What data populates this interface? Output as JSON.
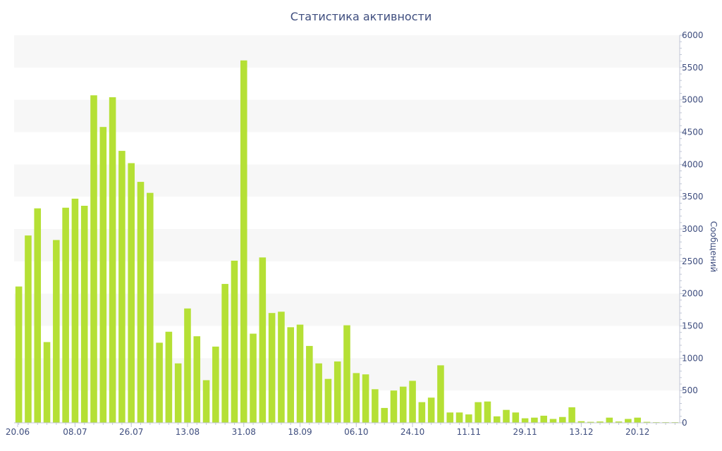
{
  "chart_data": {
    "type": "bar",
    "title": "Статистика активности",
    "ylabel": "Сообщений",
    "xlabel": "",
    "ylim": [
      0,
      6000
    ],
    "yticks": [
      0,
      500,
      1000,
      1500,
      2000,
      2500,
      3000,
      3500,
      4000,
      4500,
      5000,
      5500,
      6000
    ],
    "y_axis_side": "right",
    "grid": "alternating horizontal bands",
    "x_tick_labels": [
      "20.06",
      "08.07",
      "26.07",
      "13.08",
      "31.08",
      "18.09",
      "06.10",
      "24.10",
      "11.11",
      "29.11",
      "13.12",
      "20.12"
    ],
    "x_tick_at_bar": [
      0,
      6,
      12,
      18,
      24,
      30,
      36,
      42,
      48,
      54,
      60,
      66
    ],
    "bar_color": "#b5e035",
    "band_color": "#f7f7f7",
    "text_color": "#3e4d7e",
    "values": [
      2110,
      2900,
      3320,
      1250,
      2830,
      3330,
      3470,
      3360,
      5070,
      4580,
      5040,
      4210,
      4020,
      3730,
      3560,
      1240,
      1410,
      920,
      1770,
      1340,
      660,
      1180,
      2150,
      2510,
      5610,
      1380,
      2560,
      1700,
      1720,
      1480,
      1520,
      1190,
      920,
      680,
      950,
      1510,
      770,
      750,
      520,
      230,
      500,
      560,
      650,
      320,
      390,
      890,
      160,
      160,
      130,
      320,
      330,
      100,
      200,
      160,
      70,
      80,
      110,
      60,
      90,
      240,
      25,
      15,
      20,
      80,
      20,
      60,
      80,
      15,
      10,
      10,
      10
    ]
  }
}
